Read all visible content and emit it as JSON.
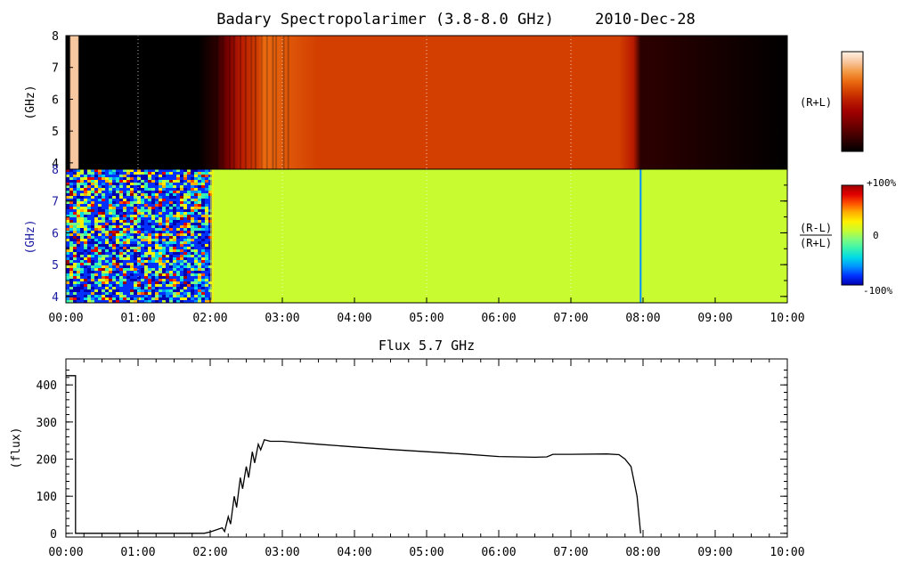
{
  "header": {
    "title": "Badary Spectropolarimer (3.8-8.0 GHz)",
    "date": "2010-Dec-28"
  },
  "colors": {
    "background": "#ffffff",
    "axis": "#000000",
    "flux_line": "#000000",
    "stokes_I_scale": [
      "#000000",
      "#2b0000",
      "#550000",
      "#7e0000",
      "#a00000",
      "#b81a00",
      "#d23f00",
      "#ea6a10",
      "#f39a45",
      "#f8c8a0",
      "#fff2e6"
    ],
    "stokes_V_scale": [
      "#0000b0",
      "#0030ff",
      "#0090ff",
      "#00d8e8",
      "#36f2b0",
      "#7cfc80",
      "#c8fc30",
      "#fff000",
      "#ffb000",
      "#ff5000",
      "#e00000",
      "#a00000"
    ]
  },
  "chart_data": [
    {
      "type": "heatmap",
      "name": "intensity",
      "ylabel": "(GHz)",
      "right_label": "(R+L)",
      "ylim": [
        3.8,
        8.0
      ],
      "xlim": [
        "00:00",
        "10:00"
      ],
      "y_ticks": [
        "4",
        "5",
        "6",
        "7",
        "8"
      ],
      "vertical_dotted_grid": [
        "01:00",
        "03:00",
        "05:00",
        "07:00"
      ],
      "time_profile": [
        {
          "t": "00:00",
          "level": 0.03
        },
        {
          "t": "00:03",
          "level": 0.03
        },
        {
          "t": "00:04",
          "level": 0.88
        },
        {
          "t": "00:10",
          "level": 0.88
        },
        {
          "t": "00:11",
          "level": 0.03
        },
        {
          "t": "01:50",
          "level": 0.03
        },
        {
          "t": "02:05",
          "level": 0.1
        },
        {
          "t": "02:15",
          "level": 0.3
        },
        {
          "t": "02:25",
          "level": 0.45
        },
        {
          "t": "02:40",
          "level": 0.58
        },
        {
          "t": "02:45",
          "level": 0.68
        },
        {
          "t": "03:30",
          "level": 0.64
        },
        {
          "t": "05:00",
          "level": 0.62
        },
        {
          "t": "06:00",
          "level": 0.6
        },
        {
          "t": "07:40",
          "level": 0.6
        },
        {
          "t": "07:52",
          "level": 0.45
        },
        {
          "t": "07:58",
          "level": 0.12
        },
        {
          "t": "08:05",
          "level": 0.05
        },
        {
          "t": "10:00",
          "level": 0.04
        }
      ]
    },
    {
      "type": "heatmap",
      "name": "polarization",
      "ylabel": "(GHz)",
      "right_label_num": "(R-L)",
      "right_label_den": "(R+L)",
      "ylim": [
        3.8,
        8.0
      ],
      "xlim": [
        "00:00",
        "10:00"
      ],
      "y_ticks": [
        "4",
        "5",
        "6",
        "7",
        "8"
      ],
      "vertical_dotted_grid": [
        "01:00",
        "03:00",
        "05:00",
        "07:00"
      ],
      "noisy_interval": [
        "00:00",
        "02:00"
      ],
      "quiet_value_percent": 5,
      "colorbar_labels": [
        "+100%",
        "0",
        "-100%"
      ]
    },
    {
      "type": "line",
      "title": "Flux 5.7 GHz",
      "ylabel": "(flux)",
      "xlim": [
        "00:00",
        "10:00"
      ],
      "ylim": [
        -10,
        470
      ],
      "y_ticks": [
        "0",
        "100",
        "200",
        "300",
        "400"
      ],
      "x_ticks": [
        "00:00",
        "01:00",
        "02:00",
        "03:00",
        "04:00",
        "05:00",
        "06:00",
        "07:00",
        "08:00",
        "09:00",
        "10:00"
      ],
      "points": [
        {
          "t": "00:00",
          "v": 425
        },
        {
          "t": "00:08",
          "v": 425
        },
        {
          "t": "00:08",
          "v": 0
        },
        {
          "t": "01:55",
          "v": 0
        },
        {
          "t": "02:00",
          "v": 4
        },
        {
          "t": "02:10",
          "v": 15
        },
        {
          "t": "02:12",
          "v": 5
        },
        {
          "t": "02:15",
          "v": 45
        },
        {
          "t": "02:17",
          "v": 25
        },
        {
          "t": "02:20",
          "v": 100
        },
        {
          "t": "02:22",
          "v": 70
        },
        {
          "t": "02:25",
          "v": 150
        },
        {
          "t": "02:27",
          "v": 120
        },
        {
          "t": "02:30",
          "v": 180
        },
        {
          "t": "02:32",
          "v": 150
        },
        {
          "t": "02:35",
          "v": 220
        },
        {
          "t": "02:37",
          "v": 190
        },
        {
          "t": "02:40",
          "v": 240
        },
        {
          "t": "02:42",
          "v": 225
        },
        {
          "t": "02:45",
          "v": 252
        },
        {
          "t": "02:50",
          "v": 248
        },
        {
          "t": "03:00",
          "v": 248
        },
        {
          "t": "03:30",
          "v": 240
        },
        {
          "t": "04:00",
          "v": 233
        },
        {
          "t": "04:30",
          "v": 226
        },
        {
          "t": "05:00",
          "v": 220
        },
        {
          "t": "05:30",
          "v": 214
        },
        {
          "t": "06:00",
          "v": 207
        },
        {
          "t": "06:30",
          "v": 205
        },
        {
          "t": "06:40",
          "v": 206
        },
        {
          "t": "06:45",
          "v": 213
        },
        {
          "t": "07:00",
          "v": 213
        },
        {
          "t": "07:30",
          "v": 214
        },
        {
          "t": "07:40",
          "v": 212
        },
        {
          "t": "07:45",
          "v": 200
        },
        {
          "t": "07:50",
          "v": 180
        },
        {
          "t": "07:55",
          "v": 100
        },
        {
          "t": "07:58",
          "v": 0
        }
      ]
    }
  ]
}
